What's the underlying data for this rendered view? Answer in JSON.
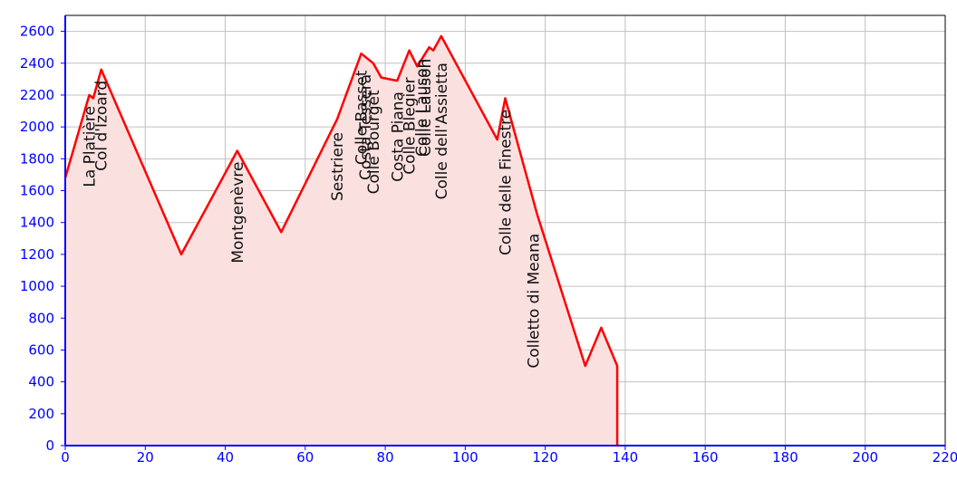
{
  "chart_data": {
    "type": "area",
    "title": "",
    "xlabel": "",
    "ylabel": "",
    "xlim": [
      0,
      220
    ],
    "ylim": [
      0,
      2700
    ],
    "grid": true,
    "x_ticks": [
      0,
      20,
      40,
      60,
      80,
      100,
      120,
      140,
      160,
      180,
      200,
      220
    ],
    "y_ticks": [
      0,
      200,
      400,
      600,
      800,
      1000,
      1200,
      1400,
      1600,
      1800,
      2000,
      2200,
      2400,
      2600
    ],
    "colors": {
      "line": "#ff0000",
      "fill": "#fbe0e0",
      "axis": "#0000ff",
      "tick_text": "#0000ff",
      "grid": "#c0c0c0"
    },
    "profile": {
      "x": [
        0,
        6,
        7,
        9,
        29,
        43,
        54,
        68,
        74,
        77,
        79,
        83,
        86,
        88,
        91,
        92,
        94,
        108,
        110,
        118,
        130,
        134,
        138,
        138
      ],
      "y": [
        1680,
        2200,
        2180,
        2360,
        1200,
        1850,
        1340,
        2050,
        2460,
        2400,
        2310,
        2290,
        2480,
        2380,
        2500,
        2480,
        2570,
        1920,
        2180,
        1450,
        500,
        740,
        500,
        0
      ]
    },
    "climbs": [
      {
        "name": "La Platière",
        "km": 6,
        "alt": 2200
      },
      {
        "name": "Col d'Izoard",
        "km": 9,
        "alt": 2360
      },
      {
        "name": "Montgenèvre",
        "km": 43,
        "alt": 1850
      },
      {
        "name": "Sestriere",
        "km": 68,
        "alt": 2035
      },
      {
        "name": "Colle Basset",
        "km": 74,
        "alt": 2424
      },
      {
        "name": "Costa Tessera",
        "km": 75,
        "alt": 2400
      },
      {
        "name": "Colle Bourget",
        "km": 77,
        "alt": 2300
      },
      {
        "name": "Costa Piana",
        "km": 83,
        "alt": 2290
      },
      {
        "name": "Colle Blegier",
        "km": 86,
        "alt": 2380
      },
      {
        "name": "Colle Lauson",
        "km": 89,
        "alt": 2497
      },
      {
        "name": "Colle Lauson",
        "km": 90,
        "alt": 2497
      },
      {
        "name": "Colle dell'Assietta",
        "km": 94,
        "alt": 2472
      },
      {
        "name": "Colle delle Finestre",
        "km": 110,
        "alt": 2178
      },
      {
        "name": "Colletto di Meana",
        "km": 117,
        "alt": 1400
      }
    ]
  }
}
